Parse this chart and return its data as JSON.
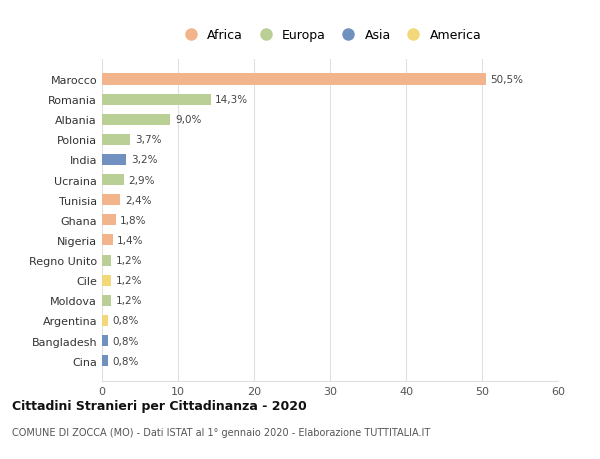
{
  "categories": [
    "Marocco",
    "Romania",
    "Albania",
    "Polonia",
    "India",
    "Ucraina",
    "Tunisia",
    "Ghana",
    "Nigeria",
    "Regno Unito",
    "Cile",
    "Moldova",
    "Argentina",
    "Bangladesh",
    "Cina"
  ],
  "values": [
    50.5,
    14.3,
    9.0,
    3.7,
    3.2,
    2.9,
    2.4,
    1.8,
    1.4,
    1.2,
    1.2,
    1.2,
    0.8,
    0.8,
    0.8
  ],
  "labels": [
    "50,5%",
    "14,3%",
    "9,0%",
    "3,7%",
    "3,2%",
    "2,9%",
    "2,4%",
    "1,8%",
    "1,4%",
    "1,2%",
    "1,2%",
    "1,2%",
    "0,8%",
    "0,8%",
    "0,8%"
  ],
  "continents": [
    "Africa",
    "Europa",
    "Europa",
    "Europa",
    "Asia",
    "Europa",
    "Africa",
    "Africa",
    "Africa",
    "Europa",
    "America",
    "Europa",
    "America",
    "Asia",
    "Asia"
  ],
  "colors": {
    "Africa": "#F2B48A",
    "Europa": "#BACF96",
    "Asia": "#7090C0",
    "America": "#F2D878"
  },
  "xlim": [
    0,
    60
  ],
  "xticks": [
    0,
    10,
    20,
    30,
    40,
    50,
    60
  ],
  "title": "Cittadini Stranieri per Cittadinanza - 2020",
  "subtitle": "COMUNE DI ZOCCA (MO) - Dati ISTAT al 1° gennaio 2020 - Elaborazione TUTTITALIA.IT",
  "background_color": "#ffffff",
  "grid_color": "#e0e0e0",
  "bar_height": 0.55,
  "legend_order": [
    "Africa",
    "Europa",
    "Asia",
    "America"
  ]
}
